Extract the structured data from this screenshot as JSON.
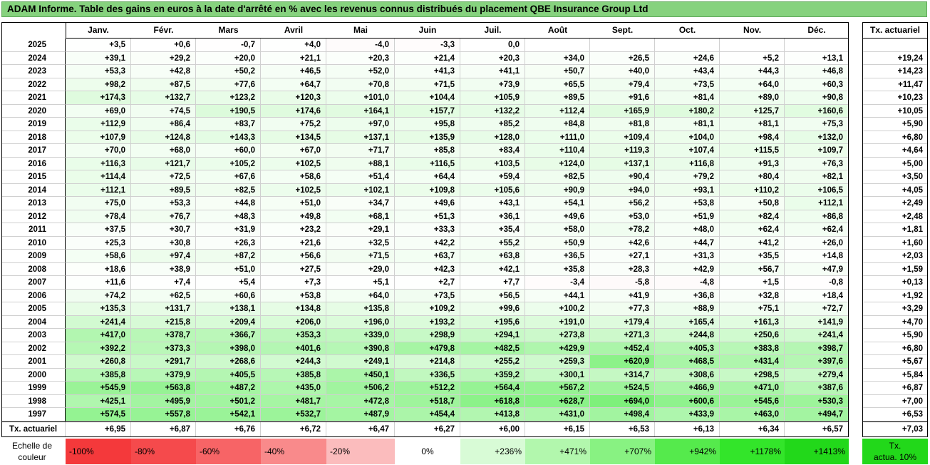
{
  "title": "ADAM Informe. Table des gains en euros à la date d'arrêté en % avec les revenus connus distribués du placement QBE Insurance Group Ltd",
  "chart_data": {
    "type": "table",
    "title": "ADAM Informe. Table des gains en euros à la date d'arrêté en % avec les revenus connus distribués du placement QBE Insurance Group Ltd",
    "months": [
      "Janv.",
      "Févr.",
      "Mars",
      "Avril",
      "Mai",
      "Juin",
      "Juil.",
      "Août",
      "Sept.",
      "Oct.",
      "Nov.",
      "Déc."
    ],
    "actuarial_header": "Tx. actuariel",
    "rows": [
      {
        "year": "2025",
        "values": [
          "+3,5",
          "+0,6",
          "-0,7",
          "+4,0",
          "-4,0",
          "-3,3",
          "0,0",
          "",
          "",
          "",
          "",
          ""
        ],
        "rate": ""
      },
      {
        "year": "2024",
        "values": [
          "+39,1",
          "+29,2",
          "+20,0",
          "+21,1",
          "+20,3",
          "+21,4",
          "+20,3",
          "+34,0",
          "+26,5",
          "+24,6",
          "+5,2",
          "+13,1"
        ],
        "rate": "+19,24"
      },
      {
        "year": "2023",
        "values": [
          "+53,3",
          "+42,8",
          "+50,2",
          "+46,5",
          "+52,0",
          "+41,3",
          "+41,1",
          "+50,7",
          "+40,0",
          "+43,4",
          "+44,3",
          "+46,8"
        ],
        "rate": "+14,23"
      },
      {
        "year": "2022",
        "values": [
          "+98,2",
          "+87,5",
          "+77,6",
          "+64,7",
          "+70,8",
          "+71,5",
          "+73,9",
          "+65,5",
          "+79,4",
          "+73,5",
          "+64,0",
          "+60,3"
        ],
        "rate": "+11,47"
      },
      {
        "year": "2021",
        "values": [
          "+174,3",
          "+132,7",
          "+123,2",
          "+120,3",
          "+101,0",
          "+104,4",
          "+105,9",
          "+89,5",
          "+91,6",
          "+81,4",
          "+89,0",
          "+90,8"
        ],
        "rate": "+10,23"
      },
      {
        "year": "2020",
        "values": [
          "+69,0",
          "+74,5",
          "+190,5",
          "+174,6",
          "+164,1",
          "+157,7",
          "+132,2",
          "+112,4",
          "+165,9",
          "+180,2",
          "+125,7",
          "+160,6"
        ],
        "rate": "+10,05"
      },
      {
        "year": "2019",
        "values": [
          "+112,9",
          "+86,4",
          "+83,7",
          "+75,2",
          "+97,0",
          "+95,8",
          "+85,2",
          "+84,8",
          "+81,8",
          "+81,1",
          "+81,1",
          "+75,3"
        ],
        "rate": "+5,90"
      },
      {
        "year": "2018",
        "values": [
          "+107,9",
          "+124,8",
          "+143,3",
          "+134,5",
          "+137,1",
          "+135,9",
          "+128,0",
          "+111,0",
          "+109,4",
          "+104,0",
          "+98,4",
          "+132,0"
        ],
        "rate": "+6,80"
      },
      {
        "year": "2017",
        "values": [
          "+70,0",
          "+68,0",
          "+60,0",
          "+67,0",
          "+71,7",
          "+85,8",
          "+83,4",
          "+110,4",
          "+119,3",
          "+107,4",
          "+115,5",
          "+109,7"
        ],
        "rate": "+4,64"
      },
      {
        "year": "2016",
        "values": [
          "+116,3",
          "+121,7",
          "+105,2",
          "+102,5",
          "+88,1",
          "+116,5",
          "+103,5",
          "+124,0",
          "+137,1",
          "+116,8",
          "+91,3",
          "+76,3"
        ],
        "rate": "+5,00"
      },
      {
        "year": "2015",
        "values": [
          "+114,4",
          "+72,5",
          "+67,6",
          "+58,6",
          "+51,4",
          "+64,4",
          "+59,4",
          "+82,5",
          "+90,4",
          "+79,2",
          "+80,4",
          "+82,1"
        ],
        "rate": "+3,50"
      },
      {
        "year": "2014",
        "values": [
          "+112,1",
          "+89,5",
          "+82,5",
          "+102,5",
          "+102,1",
          "+109,8",
          "+105,6",
          "+90,9",
          "+94,0",
          "+93,1",
          "+110,2",
          "+106,5"
        ],
        "rate": "+4,05"
      },
      {
        "year": "2013",
        "values": [
          "+75,0",
          "+53,3",
          "+44,8",
          "+51,0",
          "+34,7",
          "+49,6",
          "+43,1",
          "+54,1",
          "+56,2",
          "+53,8",
          "+50,8",
          "+112,1"
        ],
        "rate": "+2,49"
      },
      {
        "year": "2012",
        "values": [
          "+78,4",
          "+76,7",
          "+48,3",
          "+49,8",
          "+68,1",
          "+51,3",
          "+36,1",
          "+49,6",
          "+53,0",
          "+51,9",
          "+82,4",
          "+86,8"
        ],
        "rate": "+2,48"
      },
      {
        "year": "2011",
        "values": [
          "+37,5",
          "+30,7",
          "+31,9",
          "+23,2",
          "+29,1",
          "+33,3",
          "+35,4",
          "+58,0",
          "+78,2",
          "+48,0",
          "+62,4",
          "+62,4"
        ],
        "rate": "+1,81"
      },
      {
        "year": "2010",
        "values": [
          "+25,3",
          "+30,8",
          "+26,3",
          "+21,6",
          "+32,5",
          "+42,2",
          "+55,2",
          "+50,9",
          "+42,6",
          "+44,7",
          "+41,2",
          "+26,0"
        ],
        "rate": "+1,60"
      },
      {
        "year": "2009",
        "values": [
          "+58,6",
          "+97,4",
          "+87,2",
          "+56,6",
          "+71,5",
          "+63,7",
          "+63,8",
          "+36,5",
          "+27,1",
          "+31,3",
          "+35,5",
          "+14,8"
        ],
        "rate": "+2,03"
      },
      {
        "year": "2008",
        "values": [
          "+18,6",
          "+38,9",
          "+51,0",
          "+27,5",
          "+29,0",
          "+42,3",
          "+42,1",
          "+35,8",
          "+28,3",
          "+42,9",
          "+56,7",
          "+47,9"
        ],
        "rate": "+1,59"
      },
      {
        "year": "2007",
        "values": [
          "+11,6",
          "+7,4",
          "+5,4",
          "+7,3",
          "+5,1",
          "+2,7",
          "+7,7",
          "-3,4",
          "-5,8",
          "-4,8",
          "+1,5",
          "-0,8"
        ],
        "rate": "+0,13"
      },
      {
        "year": "2006",
        "values": [
          "+74,2",
          "+62,5",
          "+60,6",
          "+53,8",
          "+64,0",
          "+73,5",
          "+56,5",
          "+44,1",
          "+41,9",
          "+36,8",
          "+32,8",
          "+18,4"
        ],
        "rate": "+1,92"
      },
      {
        "year": "2005",
        "values": [
          "+135,3",
          "+131,7",
          "+138,1",
          "+134,8",
          "+135,8",
          "+109,2",
          "+99,6",
          "+100,2",
          "+77,3",
          "+88,9",
          "+75,1",
          "+72,7"
        ],
        "rate": "+3,29"
      },
      {
        "year": "2004",
        "values": [
          "+241,4",
          "+215,8",
          "+209,4",
          "+206,0",
          "+196,0",
          "+193,2",
          "+195,6",
          "+191,0",
          "+179,4",
          "+165,4",
          "+161,3",
          "+141,9"
        ],
        "rate": "+4,70"
      },
      {
        "year": "2003",
        "values": [
          "+417,0",
          "+378,7",
          "+366,7",
          "+353,3",
          "+339,0",
          "+298,9",
          "+294,1",
          "+273,8",
          "+271,3",
          "+244,8",
          "+250,6",
          "+241,4"
        ],
        "rate": "+5,90"
      },
      {
        "year": "2002",
        "values": [
          "+392,2",
          "+373,3",
          "+398,0",
          "+401,6",
          "+390,8",
          "+479,8",
          "+482,5",
          "+429,9",
          "+452,4",
          "+405,3",
          "+383,8",
          "+398,7"
        ],
        "rate": "+6,80"
      },
      {
        "year": "2001",
        "values": [
          "+260,8",
          "+291,7",
          "+268,6",
          "+244,3",
          "+249,1",
          "+214,8",
          "+255,2",
          "+259,3",
          "+620,9",
          "+468,5",
          "+431,4",
          "+397,6"
        ],
        "rate": "+5,67"
      },
      {
        "year": "2000",
        "values": [
          "+385,8",
          "+379,9",
          "+405,5",
          "+385,8",
          "+450,1",
          "+336,5",
          "+359,2",
          "+300,1",
          "+314,7",
          "+308,6",
          "+298,5",
          "+279,4"
        ],
        "rate": "+5,84"
      },
      {
        "year": "1999",
        "values": [
          "+545,9",
          "+563,8",
          "+487,2",
          "+435,0",
          "+506,2",
          "+512,2",
          "+564,4",
          "+567,2",
          "+524,5",
          "+466,9",
          "+471,0",
          "+387,6"
        ],
        "rate": "+6,87"
      },
      {
        "year": "1998",
        "values": [
          "+425,1",
          "+495,9",
          "+501,2",
          "+481,7",
          "+472,8",
          "+518,7",
          "+618,8",
          "+628,7",
          "+694,0",
          "+600,6",
          "+545,6",
          "+530,3"
        ],
        "rate": "+7,00"
      },
      {
        "year": "1997",
        "values": [
          "+574,5",
          "+557,8",
          "+542,1",
          "+532,7",
          "+487,9",
          "+454,4",
          "+413,8",
          "+431,0",
          "+498,4",
          "+433,9",
          "+463,0",
          "+494,7"
        ],
        "rate": "+6,53"
      }
    ],
    "footer": {
      "label": "Tx. actuariel",
      "values": [
        "+6,95",
        "+6,87",
        "+6,76",
        "+6,72",
        "+6,47",
        "+6,27",
        "+6,00",
        "+6,15",
        "+6,53",
        "+6,13",
        "+6,34",
        "+6,57"
      ],
      "rate": "+7,03"
    },
    "color_scale": {
      "label_line1": "Echelle de",
      "label_line2": "couleur",
      "steps": [
        {
          "label": "-100%",
          "color": "#f4393b"
        },
        {
          "label": "-80%",
          "color": "#f54a4c"
        },
        {
          "label": "-60%",
          "color": "#f76466"
        },
        {
          "label": "-40%",
          "color": "#f98a8b"
        },
        {
          "label": "-20%",
          "color": "#fbbcbd"
        },
        {
          "label": "0%",
          "color": "#ffffff"
        },
        {
          "label": "+236%",
          "color": "#d8fbd6"
        },
        {
          "label": "+471%",
          "color": "#b2f7ad"
        },
        {
          "label": "+707%",
          "color": "#88f282"
        },
        {
          "label": "+942%",
          "color": "#55ea4c"
        },
        {
          "label": "+1178%",
          "color": "#33e52a"
        },
        {
          "label": "+1413%",
          "color": "#22d81a"
        }
      ],
      "rate_label_line1": "Tx.",
      "rate_label_line2": "actua. 10%",
      "rate_color": "#22d81a"
    },
    "colors": {
      "title_bg": "#86d27e",
      "positive_max": "#7df07a",
      "negative": "#fbe4e4"
    }
  }
}
